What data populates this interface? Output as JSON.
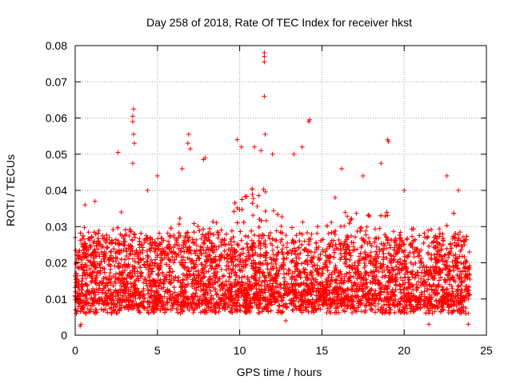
{
  "chart_data": {
    "type": "scatter",
    "title": "Day 258 of 2018, Rate Of TEC Index for receiver hkst",
    "xlabel": "GPS time / hours",
    "ylabel": "ROTI / TECUs",
    "xlim": [
      0,
      25
    ],
    "ylim": [
      0,
      0.08
    ],
    "x_ticks": [
      0,
      5,
      10,
      15,
      20,
      25
    ],
    "x_tick_labels": [
      "0",
      "5",
      "10",
      "15",
      "20",
      "25"
    ],
    "y_ticks": [
      0,
      0.01,
      0.02,
      0.03,
      0.04,
      0.05,
      0.06,
      0.07,
      0.08
    ],
    "y_tick_labels": [
      "0",
      "0.01",
      "0.02",
      "0.03",
      "0.04",
      "0.05",
      "0.06",
      "0.07",
      "0.08"
    ],
    "grid": true,
    "marker": "+",
    "series_color": "#ff0000",
    "x_data_range": [
      0,
      24
    ],
    "typical_band": [
      0.006,
      0.025
    ],
    "envelope": [
      [
        0,
        0.022
      ],
      [
        0.5,
        0.03
      ],
      [
        1,
        0.028
      ],
      [
        1.5,
        0.03
      ],
      [
        2,
        0.028
      ],
      [
        2.5,
        0.03
      ],
      [
        3,
        0.03
      ],
      [
        3.5,
        0.03
      ],
      [
        4,
        0.03
      ],
      [
        4.5,
        0.028
      ],
      [
        5,
        0.03
      ],
      [
        5.5,
        0.028
      ],
      [
        6,
        0.032
      ],
      [
        6.5,
        0.034
      ],
      [
        7,
        0.034
      ],
      [
        7.5,
        0.03
      ],
      [
        8,
        0.03
      ],
      [
        8.5,
        0.032
      ],
      [
        9,
        0.03
      ],
      [
        9.5,
        0.034
      ],
      [
        10,
        0.04
      ],
      [
        10.5,
        0.042
      ],
      [
        11,
        0.045
      ],
      [
        11.5,
        0.044
      ],
      [
        12,
        0.038
      ],
      [
        12.5,
        0.036
      ],
      [
        13,
        0.034
      ],
      [
        13.5,
        0.036
      ],
      [
        14,
        0.038
      ],
      [
        14.5,
        0.032
      ],
      [
        15,
        0.03
      ],
      [
        15.5,
        0.032
      ],
      [
        16,
        0.036
      ],
      [
        16.5,
        0.034
      ],
      [
        17,
        0.036
      ],
      [
        17.5,
        0.032
      ],
      [
        18,
        0.034
      ],
      [
        18.5,
        0.036
      ],
      [
        19,
        0.034
      ],
      [
        19.5,
        0.032
      ],
      [
        20,
        0.03
      ],
      [
        20.5,
        0.03
      ],
      [
        21,
        0.028
      ],
      [
        21.5,
        0.03
      ],
      [
        22,
        0.03
      ],
      [
        22.5,
        0.032
      ],
      [
        23,
        0.034
      ],
      [
        23.5,
        0.03
      ],
      [
        24,
        0.026
      ]
    ],
    "outliers": [
      [
        11.5,
        0.078
      ],
      [
        11.5,
        0.077
      ],
      [
        11.5,
        0.0755
      ],
      [
        11.5,
        0.066
      ],
      [
        11.55,
        0.0555
      ],
      [
        3.55,
        0.0625
      ],
      [
        3.5,
        0.0605
      ],
      [
        3.5,
        0.059
      ],
      [
        3.55,
        0.0555
      ],
      [
        3.6,
        0.053
      ],
      [
        3.5,
        0.0475
      ],
      [
        2.6,
        0.0505
      ],
      [
        14.25,
        0.0595
      ],
      [
        14.2,
        0.059
      ],
      [
        19.0,
        0.054
      ],
      [
        19.05,
        0.0535
      ],
      [
        6.9,
        0.0555
      ],
      [
        6.85,
        0.053
      ],
      [
        7.0,
        0.0515
      ],
      [
        7.9,
        0.049
      ],
      [
        7.8,
        0.0485
      ],
      [
        9.85,
        0.054
      ],
      [
        10.1,
        0.052
      ],
      [
        10.9,
        0.052
      ],
      [
        11.3,
        0.051
      ],
      [
        12.0,
        0.05
      ],
      [
        13.3,
        0.05
      ],
      [
        13.8,
        0.052
      ],
      [
        16.2,
        0.046
      ],
      [
        18.6,
        0.0475
      ],
      [
        6.5,
        0.046
      ],
      [
        5.0,
        0.044
      ],
      [
        4.4,
        0.04
      ],
      [
        2.8,
        0.034
      ],
      [
        0.6,
        0.036
      ],
      [
        1.2,
        0.037
      ],
      [
        22.6,
        0.044
      ],
      [
        23.3,
        0.04
      ],
      [
        20.0,
        0.04
      ],
      [
        17.5,
        0.044
      ],
      [
        15.8,
        0.038
      ],
      [
        0.3,
        0.0025
      ],
      [
        0.35,
        0.003
      ],
      [
        21.5,
        0.003
      ],
      [
        23.9,
        0.003
      ],
      [
        12.8,
        0.004
      ]
    ]
  }
}
